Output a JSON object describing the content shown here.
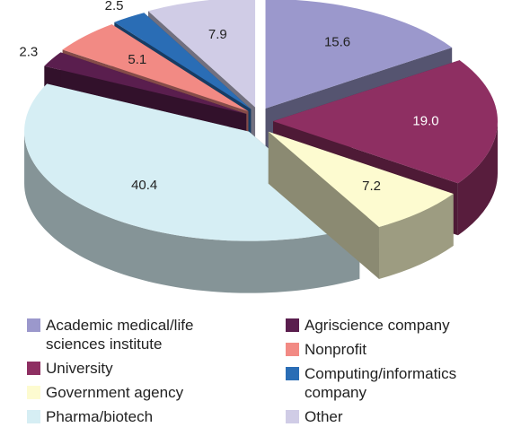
{
  "chart_data": {
    "type": "pie3d",
    "categories": [
      "Academic medical/life sciences institute",
      "University",
      "Government agency",
      "Pharma/biotech",
      "Agriscience company",
      "Nonprofit",
      "Computing/informatics company",
      "Other"
    ],
    "values": [
      15.6,
      19.0,
      7.2,
      40.4,
      2.3,
      5.1,
      2.5,
      7.9
    ],
    "value_labels": [
      "15.6",
      "19.0",
      "7.2",
      "40.4",
      "2.3",
      "5.1",
      "2.5",
      "7.9"
    ],
    "colors": [
      "#9b98cc",
      "#8e2f62",
      "#fdfbd0",
      "#d6eef4",
      "#5a1e4e",
      "#f28a84",
      "#2a6db5",
      "#d0cce6"
    ],
    "legend": true
  }
}
